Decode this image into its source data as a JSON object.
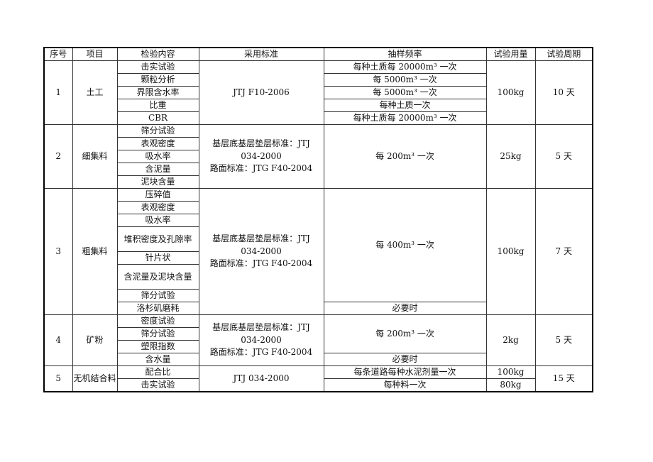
{
  "headers": [
    "序号",
    "项目",
    "检验内容",
    "采用标准",
    "抽样频率",
    "试验用量",
    "试验周期"
  ],
  "groups": [
    {
      "seq": "1",
      "project": "土工",
      "items": [
        {
          "text": "击实试验",
          "units": 1
        },
        {
          "text": "颗粒分析",
          "units": 1
        },
        {
          "text": "界限含水率",
          "units": 1
        },
        {
          "text": "比重",
          "units": 1
        },
        {
          "text": "CBR",
          "units": 1
        }
      ],
      "standard": [
        "JTJ F10-2006"
      ],
      "sampling": [
        {
          "text": "每种土质每 20000m³ 一次",
          "units": 1
        },
        {
          "text": "每 5000m³ 一次",
          "units": 1
        },
        {
          "text": "每 5000m³ 一次",
          "units": 1
        },
        {
          "text": "每种土质一次",
          "units": 1
        },
        {
          "text": "每种土质每 20000m³ 一次",
          "units": 1
        }
      ],
      "usage": [
        {
          "text": "100kg",
          "units": 5
        }
      ],
      "period": "10 天"
    },
    {
      "seq": "2",
      "project": "细集料",
      "items": [
        {
          "text": "筛分试验",
          "units": 1
        },
        {
          "text": "表观密度",
          "units": 1
        },
        {
          "text": "吸水率",
          "units": 1
        },
        {
          "text": "含泥量",
          "units": 1
        },
        {
          "text": "泥块含量",
          "units": 1
        }
      ],
      "standard": [
        "基层底基层垫层标准：JTJ",
        "034-2000",
        "路面标准：JTG F40-2004"
      ],
      "sampling": [
        {
          "text": "每 200m³ 一次",
          "units": 5
        }
      ],
      "usage": [
        {
          "text": "25kg",
          "units": 5
        }
      ],
      "period": "5 天"
    },
    {
      "seq": "3",
      "project": "粗集料",
      "items": [
        {
          "text": "压碎值",
          "units": 1
        },
        {
          "text": "表观密度",
          "units": 1
        },
        {
          "text": "吸水率",
          "units": 1
        },
        {
          "text": "堆积密度及孔隙率",
          "units": 2
        },
        {
          "text": "针片状",
          "units": 1
        },
        {
          "text": "含泥量及泥块含量",
          "units": 2
        },
        {
          "text": "筛分试验",
          "units": 1
        },
        {
          "text": "洛杉矶磨耗",
          "units": 1
        }
      ],
      "standard": [
        "基层底基层垫层标准：JTJ",
        "034-2000",
        "路面标准：JTG F40-2004"
      ],
      "sampling": [
        {
          "text": "每 400m³ 一次",
          "units": 9
        },
        {
          "text": "必要时",
          "units": 1
        }
      ],
      "usage": [
        {
          "text": "100kg",
          "units": 10
        }
      ],
      "period": "7 天"
    },
    {
      "seq": "4",
      "project": "矿粉",
      "items": [
        {
          "text": "密度试验",
          "units": 1
        },
        {
          "text": "筛分试验",
          "units": 1
        },
        {
          "text": "塑限指数",
          "units": 1
        },
        {
          "text": "含水量",
          "units": 1
        }
      ],
      "standard": [
        "基层底基层垫层标准：JTJ",
        "034-2000",
        "路面标准：JTG F40-2004"
      ],
      "sampling": [
        {
          "text": "每 200m³ 一次",
          "units": 3
        },
        {
          "text": "必要时",
          "units": 1
        }
      ],
      "usage": [
        {
          "text": "2kg",
          "units": 4
        }
      ],
      "period": "5 天"
    },
    {
      "seq": "5",
      "project": "无机结合料",
      "items": [
        {
          "text": "配合比",
          "units": 1
        },
        {
          "text": "击实试验",
          "units": 1
        }
      ],
      "standard": [
        "JTJ 034-2000"
      ],
      "sampling": [
        {
          "text": "每条道路每种水泥剂量一次",
          "units": 1
        },
        {
          "text": "每种料一次",
          "units": 1
        }
      ],
      "usage": [
        {
          "text": "100kg",
          "units": 1
        },
        {
          "text": "80kg",
          "units": 1
        }
      ],
      "period": "15 天"
    }
  ]
}
